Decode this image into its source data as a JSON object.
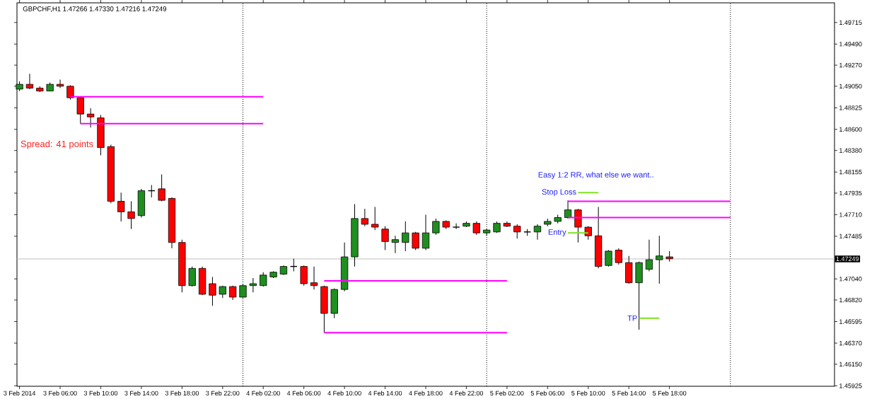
{
  "chart_data": {
    "type": "candlestick",
    "title": "GBPCHF,H1 1.47266 1.47330 1.47216 1.47249",
    "x": [
      "2014-02-03T02:00",
      "2014-02-03T03:00",
      "2014-02-03T04:00",
      "2014-02-03T05:00",
      "2014-02-03T06:00",
      "2014-02-03T07:00",
      "2014-02-03T08:00",
      "2014-02-03T09:00",
      "2014-02-03T10:00",
      "2014-02-03T11:00",
      "2014-02-03T12:00",
      "2014-02-03T13:00",
      "2014-02-03T14:00",
      "2014-02-03T15:00",
      "2014-02-03T16:00",
      "2014-02-03T17:00",
      "2014-02-03T18:00",
      "2014-02-03T19:00",
      "2014-02-03T20:00",
      "2014-02-03T21:00",
      "2014-02-03T22:00",
      "2014-02-03T23:00",
      "2014-02-04T00:00",
      "2014-02-04T01:00",
      "2014-02-04T02:00",
      "2014-02-04T03:00",
      "2014-02-04T04:00",
      "2014-02-04T05:00",
      "2014-02-04T06:00",
      "2014-02-04T07:00",
      "2014-02-04T08:00",
      "2014-02-04T09:00",
      "2014-02-04T10:00",
      "2014-02-04T11:00",
      "2014-02-04T12:00",
      "2014-02-04T13:00",
      "2014-02-04T14:00",
      "2014-02-04T15:00",
      "2014-02-04T16:00",
      "2014-02-04T17:00",
      "2014-02-04T18:00",
      "2014-02-04T19:00",
      "2014-02-04T20:00",
      "2014-02-04T21:00",
      "2014-02-04T22:00",
      "2014-02-04T23:00",
      "2014-02-05T00:00",
      "2014-02-05T01:00",
      "2014-02-05T02:00",
      "2014-02-05T03:00",
      "2014-02-05T04:00",
      "2014-02-05T05:00",
      "2014-02-05T06:00",
      "2014-02-05T07:00",
      "2014-02-05T08:00",
      "2014-02-05T09:00",
      "2014-02-05T10:00",
      "2014-02-05T11:00",
      "2014-02-05T12:00",
      "2014-02-05T13:00",
      "2014-02-05T14:00",
      "2014-02-05T15:00",
      "2014-02-05T16:00",
      "2014-02-05T17:00",
      "2014-02-05T18:00"
    ],
    "ohlc": [
      [
        1.4902,
        1.491,
        1.49,
        1.4907
      ],
      [
        1.4907,
        1.4918,
        1.4902,
        1.4903
      ],
      [
        1.4903,
        1.4905,
        1.4899,
        1.49
      ],
      [
        1.49,
        1.4909,
        1.49,
        1.4907
      ],
      [
        1.4907,
        1.4912,
        1.4903,
        1.4905
      ],
      [
        1.4905,
        1.4906,
        1.4891,
        1.4893
      ],
      [
        1.4893,
        1.4894,
        1.4866,
        1.4876
      ],
      [
        1.4876,
        1.4882,
        1.4862,
        1.4873
      ],
      [
        1.4872,
        1.4875,
        1.4833,
        1.4841
      ],
      [
        1.4842,
        1.4844,
        1.4783,
        1.4785
      ],
      [
        1.4785,
        1.4794,
        1.4764,
        1.4774
      ],
      [
        1.4774,
        1.4785,
        1.4756,
        1.4767
      ],
      [
        1.477,
        1.4798,
        1.4768,
        1.4796
      ],
      [
        1.4796,
        1.4802,
        1.4789,
        1.4796
      ],
      [
        1.4798,
        1.4813,
        1.4785,
        1.4786
      ],
      [
        1.4788,
        1.4789,
        1.4736,
        1.4742
      ],
      [
        1.4742,
        1.4745,
        1.469,
        1.4697
      ],
      [
        1.4697,
        1.4717,
        1.4696,
        1.4715
      ],
      [
        1.4715,
        1.4717,
        1.4687,
        1.4688
      ],
      [
        1.4699,
        1.4706,
        1.4676,
        1.4687
      ],
      [
        1.4688,
        1.4697,
        1.4684,
        1.4696
      ],
      [
        1.4696,
        1.4697,
        1.4682,
        1.4685
      ],
      [
        1.4685,
        1.4699,
        1.4684,
        1.4697
      ],
      [
        1.4697,
        1.4705,
        1.469,
        1.4699
      ],
      [
        1.4697,
        1.4711,
        1.4696,
        1.4708
      ],
      [
        1.4706,
        1.4712,
        1.4705,
        1.4711
      ],
      [
        1.4709,
        1.4718,
        1.4708,
        1.4717
      ],
      [
        1.4717,
        1.4725,
        1.4712,
        1.4717
      ],
      [
        1.4717,
        1.4718,
        1.4697,
        1.4699
      ],
      [
        1.47,
        1.4717,
        1.4693,
        1.4697
      ],
      [
        1.4696,
        1.4697,
        1.4648,
        1.4668
      ],
      [
        1.4668,
        1.4694,
        1.4663,
        1.4693
      ],
      [
        1.4693,
        1.4742,
        1.4691,
        1.4727
      ],
      [
        1.4727,
        1.4782,
        1.4717,
        1.4767
      ],
      [
        1.4767,
        1.4777,
        1.4759,
        1.4761
      ],
      [
        1.4761,
        1.4779,
        1.4755,
        1.4758
      ],
      [
        1.4756,
        1.4759,
        1.4734,
        1.4743
      ],
      [
        1.4742,
        1.4749,
        1.4731,
        1.4745
      ],
      [
        1.4742,
        1.4764,
        1.4733,
        1.4752
      ],
      [
        1.4752,
        1.4753,
        1.4734,
        1.4736
      ],
      [
        1.4736,
        1.4771,
        1.4734,
        1.4752
      ],
      [
        1.4752,
        1.4767,
        1.475,
        1.4764
      ],
      [
        1.4764,
        1.4765,
        1.4756,
        1.4758
      ],
      [
        1.4758,
        1.4762,
        1.4756,
        1.4758
      ],
      [
        1.4759,
        1.4764,
        1.4758,
        1.4762
      ],
      [
        1.4762,
        1.4764,
        1.475,
        1.4752
      ],
      [
        1.4752,
        1.4756,
        1.4749,
        1.4755
      ],
      [
        1.4753,
        1.4764,
        1.4752,
        1.4762
      ],
      [
        1.4762,
        1.4764,
        1.4758,
        1.4759
      ],
      [
        1.4759,
        1.4761,
        1.4746,
        1.4753
      ],
      [
        1.4753,
        1.4756,
        1.4749,
        1.4753
      ],
      [
        1.4753,
        1.4761,
        1.4745,
        1.4759
      ],
      [
        1.4761,
        1.4767,
        1.4759,
        1.4764
      ],
      [
        1.4764,
        1.4771,
        1.4762,
        1.4768
      ],
      [
        1.4768,
        1.4786,
        1.4767,
        1.4776
      ],
      [
        1.4776,
        1.4777,
        1.4742,
        1.4758
      ],
      [
        1.4758,
        1.4759,
        1.4745,
        1.4749
      ],
      [
        1.4749,
        1.4779,
        1.4715,
        1.4717
      ],
      [
        1.4718,
        1.4734,
        1.4717,
        1.4733
      ],
      [
        1.4734,
        1.4736,
        1.4719,
        1.4721
      ],
      [
        1.4721,
        1.4728,
        1.4699,
        1.47
      ],
      [
        1.47,
        1.4722,
        1.4651,
        1.4721
      ],
      [
        1.4714,
        1.4745,
        1.4712,
        1.4724
      ],
      [
        1.4724,
        1.4749,
        1.4699,
        1.4728
      ],
      [
        1.4727,
        1.4733,
        1.4722,
        1.4725
      ]
    ],
    "series": [
      {
        "type": "line",
        "color": "#ff00ff",
        "x": [
          "2014-02-03T07:00",
          "2014-02-04T02:00"
        ],
        "values": [
          1.4894,
          1.4894
        ]
      },
      {
        "type": "line",
        "color": "#ff00ff",
        "x": [
          "2014-02-03T08:00",
          "2014-02-04T02:00"
        ],
        "values": [
          1.4866,
          1.4866
        ]
      },
      {
        "type": "line",
        "color": "#ff00ff",
        "x": [
          "2014-02-04T08:00",
          "2014-02-05T02:00"
        ],
        "values": [
          1.4702,
          1.4702
        ]
      },
      {
        "type": "line",
        "color": "#ff00ff",
        "x": [
          "2014-02-04T08:00",
          "2014-02-05T02:00"
        ],
        "values": [
          1.4648,
          1.4648
        ]
      },
      {
        "type": "line",
        "color": "#ff00ff",
        "x": [
          "2014-02-05T08:00",
          "2014-02-06T00:00"
        ],
        "values": [
          1.4785,
          1.4785
        ]
      },
      {
        "type": "line",
        "color": "#ff00ff",
        "x": [
          "2014-02-05T08:00",
          "2014-02-06T00:00"
        ],
        "values": [
          1.4768,
          1.4768
        ]
      },
      {
        "type": "line",
        "color": "#80e020",
        "x": [
          "2014-02-05T09:00",
          "2014-02-05T11:00"
        ],
        "values": [
          1.4794,
          1.4794
        ]
      },
      {
        "type": "line",
        "color": "#80e020",
        "x": [
          "2014-02-05T08:00",
          "2014-02-05T10:00"
        ],
        "values": [
          1.4752,
          1.4752
        ]
      },
      {
        "type": "line",
        "color": "#80e020",
        "x": [
          "2014-02-05T15:00",
          "2014-02-05T17:00"
        ],
        "values": [
          1.4663,
          1.4663
        ]
      }
    ],
    "xlim": [
      "2014-02-03T01:45",
      "2014-02-06T10:15"
    ],
    "ylim": [
      1.4592,
      1.4992
    ],
    "xticks": [
      {
        "value": "2014-02-03T02:00",
        "label": "3 Feb 2014"
      },
      {
        "value": "2014-02-03T06:00",
        "label": "3 Feb 06:00"
      },
      {
        "value": "2014-02-03T10:00",
        "label": "3 Feb 10:00"
      },
      {
        "value": "2014-02-03T14:00",
        "label": "3 Feb 14:00"
      },
      {
        "value": "2014-02-03T18:00",
        "label": "3 Feb 18:00"
      },
      {
        "value": "2014-02-03T22:00",
        "label": "3 Feb 22:00"
      },
      {
        "value": "2014-02-04T02:00",
        "label": "4 Feb 02:00"
      },
      {
        "value": "2014-02-04T06:00",
        "label": "4 Feb 06:00"
      },
      {
        "value": "2014-02-04T10:00",
        "label": "4 Feb 10:00"
      },
      {
        "value": "2014-02-04T14:00",
        "label": "4 Feb 14:00"
      },
      {
        "value": "2014-02-04T18:00",
        "label": "4 Feb 18:00"
      },
      {
        "value": "2014-02-04T22:00",
        "label": "4 Feb 22:00"
      },
      {
        "value": "2014-02-05T02:00",
        "label": "5 Feb 02:00"
      },
      {
        "value": "2014-02-05T06:00",
        "label": "5 Feb 06:00"
      },
      {
        "value": "2014-02-05T10:00",
        "label": "5 Feb 10:00"
      },
      {
        "value": "2014-02-05T14:00",
        "label": "5 Feb 14:00"
      },
      {
        "value": "2014-02-05T18:00",
        "label": "5 Feb 18:00"
      }
    ],
    "yticks": [
      1.49715,
      {
        "value": 1.4949,
        "label": "1.49490"
      },
      {
        "value": 1.4927,
        "label": "1.49270"
      },
      {
        "value": 1.4905,
        "label": "1.49050"
      },
      1.48825,
      {
        "value": 1.486,
        "label": "1.48600"
      },
      {
        "value": 1.4838,
        "label": "1.48380"
      },
      1.48155,
      1.47935,
      {
        "value": 1.4771,
        "label": "1.47710"
      },
      1.47485,
      {
        "value": 1.4704,
        "label": "1.47040"
      },
      {
        "value": 1.4682,
        "label": "1.46820"
      },
      1.46595,
      {
        "value": 1.4637,
        "label": "1.46370"
      },
      {
        "value": 1.4615,
        "label": "1.46150"
      },
      1.45925
    ],
    "ref_lines": [
      {
        "axis": "x",
        "value": "2014-02-04T00:00",
        "color": "#000000",
        "line_style": "dotted"
      },
      {
        "axis": "x",
        "value": "2014-02-05T00:00",
        "color": "#000000",
        "line_style": "dotted"
      },
      {
        "axis": "x",
        "value": "2014-02-06T00:00",
        "color": "#000000",
        "line_style": "dotted"
      },
      {
        "axis": "y",
        "value": 1.47249,
        "label": "1.47249",
        "color": "#c0c0c0",
        "line_style": "solid"
      }
    ],
    "annotations": [
      "Spread: 41 points",
      "Easy 1:2 RR, what else we want..",
      {
        "text": "Stop Loss",
        "x": "2014-02-05T09:00",
        "y": 1.4794
      },
      {
        "text": "Entry",
        "x": "2014-02-05T08:00",
        "y": 1.4752
      },
      {
        "text": "TP",
        "x": "2014-02-05T15:00",
        "y": 1.4663
      }
    ],
    "grid": false
  }
}
